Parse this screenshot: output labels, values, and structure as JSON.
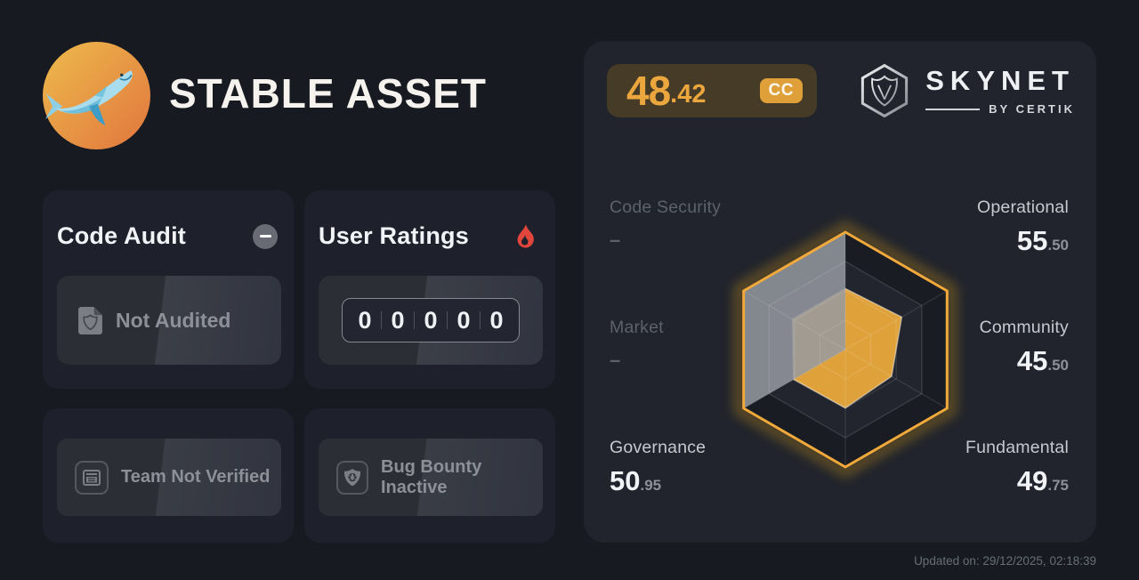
{
  "header": {
    "title": "STABLE ASSET",
    "logo_icon": "whale-icon"
  },
  "cards": {
    "code_audit": {
      "title": "Code Audit",
      "collapse_icon": "minus-icon",
      "status_icon": "audit-file-shield-icon",
      "status": "Not Audited"
    },
    "user_ratings": {
      "title": "User Ratings",
      "title_icon": "flame-icon",
      "counter_digits": [
        "0",
        "0",
        "0",
        "0",
        "0"
      ]
    },
    "team": {
      "icon": "id-card-icon",
      "label": "Team Not Verified"
    },
    "bug_bounty": {
      "icon": "bug-shield-icon",
      "label": "Bug Bounty Inactive"
    }
  },
  "skynet_panel": {
    "score": {
      "integer": "48",
      "decimal": ".42",
      "grade": "CC"
    },
    "brand": {
      "icon": "certik-hexagon-shield-icon",
      "name": "SKYNET",
      "byline": "BY CERTIK"
    },
    "axes": [
      {
        "label": "Code Security",
        "display": "–",
        "side": "left"
      },
      {
        "label": "Operational",
        "value_int": "55",
        "value_dec": ".50",
        "side": "right"
      },
      {
        "label": "Market",
        "display": "–",
        "side": "left"
      },
      {
        "label": "Community",
        "value_int": "45",
        "value_dec": ".50",
        "side": "right"
      },
      {
        "label": "Governance",
        "value_int": "50",
        "value_dec": ".95",
        "side": "left"
      },
      {
        "label": "Fundamental",
        "value_int": "49",
        "value_dec": ".75",
        "side": "right"
      }
    ],
    "updated": "Updated on: 29/12/2025, 02:18:39"
  },
  "chart_data": {
    "type": "radar",
    "axes": [
      "Code Security",
      "Operational",
      "Community",
      "Fundamental",
      "Governance",
      "Market"
    ],
    "values": [
      null,
      55.5,
      45.5,
      49.75,
      50.95,
      null
    ],
    "max": 100,
    "grid_levels": [
      25,
      50,
      75,
      100
    ],
    "missing_display_value": 52,
    "missing_axes": [
      "Code Security",
      "Market"
    ],
    "overall_score": 48.42,
    "grade": "CC",
    "legend": "none",
    "colors": {
      "data_fill": "#DFA23B",
      "outline": "#F2A93B",
      "glow": "#6e5624",
      "missing_overlay": "rgba(151,154,161,0.85)"
    }
  },
  "colors": {
    "accent_orange": "#ECA63E",
    "flame_red": "#E2453B",
    "panel_bg": "#21242d",
    "card_bg": "#1e212b"
  }
}
